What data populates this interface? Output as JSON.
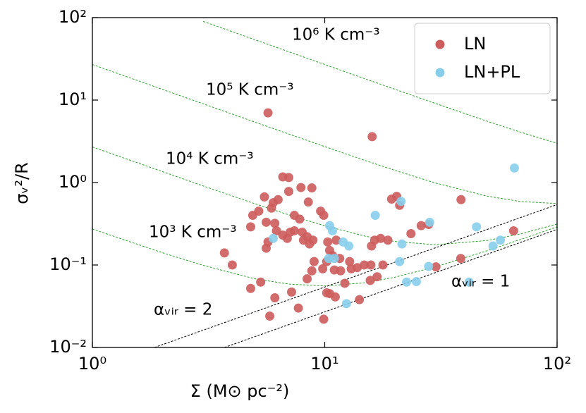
{
  "chart_data": {
    "type": "scatter",
    "x_label": "Σ (M⊙ pc⁻²)",
    "y_label": "σᵥ²/R",
    "xscale": "log",
    "yscale": "log",
    "xlim": [
      1,
      100
    ],
    "ylim": [
      0.01,
      100
    ],
    "xticks": [
      {
        "value": 1,
        "label": "10⁰"
      },
      {
        "value": 10,
        "label": "10¹"
      },
      {
        "value": 100,
        "label": "10²"
      }
    ],
    "yticks": [
      {
        "value": 0.01,
        "label": "10⁻²"
      },
      {
        "value": 0.1,
        "label": "10⁻¹"
      },
      {
        "value": 1,
        "label": "10⁰"
      },
      {
        "value": 10,
        "label": "10¹"
      },
      {
        "value": 100,
        "label": "10²"
      }
    ],
    "legend": "upper right",
    "series": [
      {
        "name": "LN",
        "color": "#cd5c5c",
        "x": [
          5.7,
          16.0,
          6.6,
          7.0,
          7.9,
          8.8,
          7.0,
          5.5,
          6.0,
          5.9,
          6.3,
          8.5,
          9.6,
          9.9,
          5.2,
          4.9,
          5.6,
          6.1,
          6.2,
          5.7,
          5.6,
          4.8,
          7.4,
          7.8,
          7.1,
          7.4,
          6.6,
          6.9,
          8.0,
          8.4,
          8.1,
          8.9,
          8.6,
          10.3,
          10.5,
          10.8,
          11.2,
          11.6,
          12.8,
          13.8,
          14.8,
          15.8,
          16.4,
          15.9,
          17.4,
          18.7,
          17.8,
          20.4,
          19.4,
          21.0,
          23.5,
          26.0,
          28.0,
          30.1,
          38.6,
          38.5,
          65.0,
          9.0,
          8.8,
          8.4,
          9.8,
          10.2,
          11.0,
          12.2,
          14.1,
          10.2,
          10.5,
          11.1,
          9.9,
          7.7,
          7.2,
          6.1,
          5.8,
          5.3,
          4.8,
          4.0,
          3.7,
          15.7,
          16.8,
          13.0,
          11.7
        ],
        "values": [
          7.0,
          3.6,
          1.17,
          1.15,
          0.87,
          0.86,
          0.78,
          0.67,
          0.57,
          0.49,
          0.62,
          0.58,
          0.45,
          0.4,
          0.45,
          0.4,
          0.33,
          0.32,
          0.26,
          0.19,
          0.16,
          0.29,
          0.4,
          0.36,
          0.25,
          0.26,
          0.23,
          0.21,
          0.25,
          0.22,
          0.2,
          0.2,
          0.18,
          0.19,
          0.15,
          0.13,
          0.2,
          0.12,
          0.11,
          0.093,
          0.1,
          0.1,
          0.2,
          0.17,
          0.21,
          0.2,
          0.1,
          0.68,
          0.63,
          0.53,
          0.24,
          0.3,
          0.31,
          0.095,
          0.62,
          0.12,
          0.26,
          0.11,
          0.085,
          0.068,
          0.09,
          0.11,
          0.087,
          0.06,
          0.038,
          0.046,
          0.045,
          0.041,
          0.022,
          0.03,
          0.047,
          0.04,
          0.024,
          0.062,
          0.052,
          0.1,
          0.14,
          0.065,
          0.072,
          0.09,
          0.085
        ]
      },
      {
        "name": "LN+PL",
        "color": "#87ceeb",
        "x": [
          6.0,
          10.5,
          10.8,
          11.0,
          12.0,
          12.7,
          16.5,
          21.3,
          21.5,
          21.0,
          22.5,
          24.8,
          28.3,
          28.0,
          45.0,
          41.8,
          53.0,
          57.0,
          65.5,
          12.4,
          10.4
        ],
        "values": [
          0.21,
          0.3,
          0.26,
          0.12,
          0.19,
          0.17,
          0.4,
          0.59,
          0.18,
          0.11,
          0.062,
          0.063,
          0.33,
          0.096,
          0.29,
          0.062,
          0.17,
          0.2,
          1.5,
          0.034,
          0.12
        ]
      }
    ],
    "curves": [
      {
        "label": "10⁶ K cm⁻³",
        "color": "#2ca02c",
        "x": [
          3,
          5,
          7,
          10,
          15,
          20,
          30,
          50,
          70,
          100
        ],
        "values": [
          90.0,
          54.0,
          38.6,
          27.0,
          18.0,
          13.56,
          9.09,
          5.54,
          4.06,
          2.99
        ]
      },
      {
        "label": "10⁵ K cm⁻³",
        "color": "#2ca02c",
        "x": [
          1,
          2,
          3,
          5,
          7,
          10,
          15,
          20,
          30,
          50,
          70,
          100
        ],
        "values": [
          27.0,
          13.5,
          9.01,
          5.41,
          3.88,
          2.73,
          1.84,
          1.41,
          0.986,
          0.684,
          0.587,
          0.557
        ]
      },
      {
        "label": "10⁴ K cm⁻³",
        "color": "#2ca02c",
        "x": [
          1,
          2,
          3,
          5,
          7,
          10,
          15,
          20,
          30,
          50,
          70,
          100
        ],
        "values": [
          2.7,
          1.36,
          0.909,
          0.554,
          0.406,
          0.299,
          0.223,
          0.193,
          0.176,
          0.198,
          0.239,
          0.314
        ]
      },
      {
        "label": "10³ K cm⁻³",
        "color": "#2ca02c",
        "x": [
          1,
          2,
          3,
          5,
          7,
          10,
          15,
          20,
          30,
          50,
          70,
          100
        ],
        "values": [
          0.273,
          0.141,
          0.099,
          0.068,
          0.0587,
          0.0557,
          0.061,
          0.071,
          0.095,
          0.149,
          0.205,
          0.29
        ]
      },
      {
        "label": "αᵥᵢᵣ = 2",
        "color": "#000000",
        "x": [
          1.85,
          100
        ],
        "values": [
          0.01,
          0.54
        ]
      },
      {
        "label": "αᵥᵢᵣ = 1",
        "color": "#000000",
        "x": [
          3.7,
          100
        ],
        "values": [
          0.01,
          0.27
        ]
      }
    ]
  }
}
